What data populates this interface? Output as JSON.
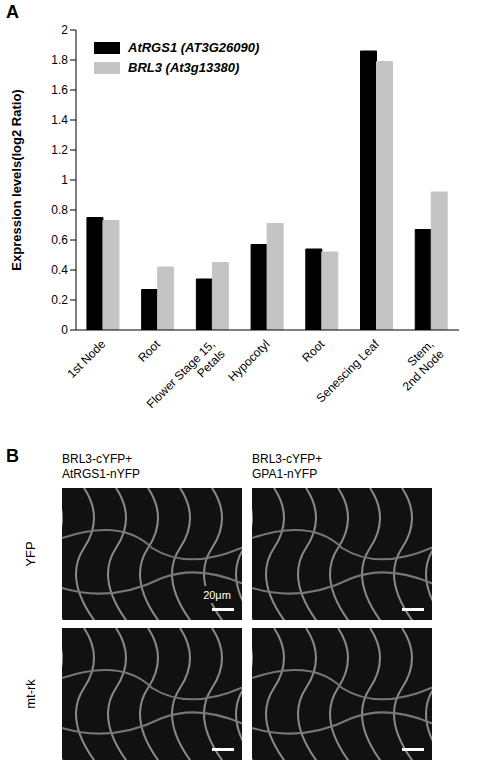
{
  "chart_data": {
    "type": "bar",
    "panel_label": "A",
    "y_label": "Expression levels(log2 Ratio)",
    "categories": [
      "1st Node",
      "Root",
      "Flower Stage 15, Petals",
      "Hypocotyl",
      "Root",
      "Senescing Leaf",
      "Stem, 2nd Node"
    ],
    "series": [
      {
        "name": "AtRGS1 (AT3G26090)",
        "color": "#000000",
        "values": [
          0.75,
          0.27,
          0.34,
          0.57,
          0.54,
          1.86,
          0.67
        ]
      },
      {
        "name": "BRL3 (At3g13380)",
        "color": "#c4c4c4",
        "values": [
          0.73,
          0.42,
          0.45,
          0.71,
          0.52,
          1.79,
          0.92
        ]
      }
    ],
    "ylim": [
      0,
      2
    ],
    "yticks": [
      0,
      0.2,
      0.4,
      0.6,
      0.8,
      1,
      1.2,
      1.4,
      1.6,
      1.8,
      2
    ],
    "grid": false,
    "legend": "upper left"
  },
  "panel_b": {
    "panel_label": "B",
    "columns": [
      "BRL3-cYFP+ AtRGS1-nYFP",
      "BRL3-cYFP+ GPA1-nYFP"
    ],
    "rows": [
      "YFP",
      "mt-rk"
    ],
    "scale_bar": "20μm"
  }
}
